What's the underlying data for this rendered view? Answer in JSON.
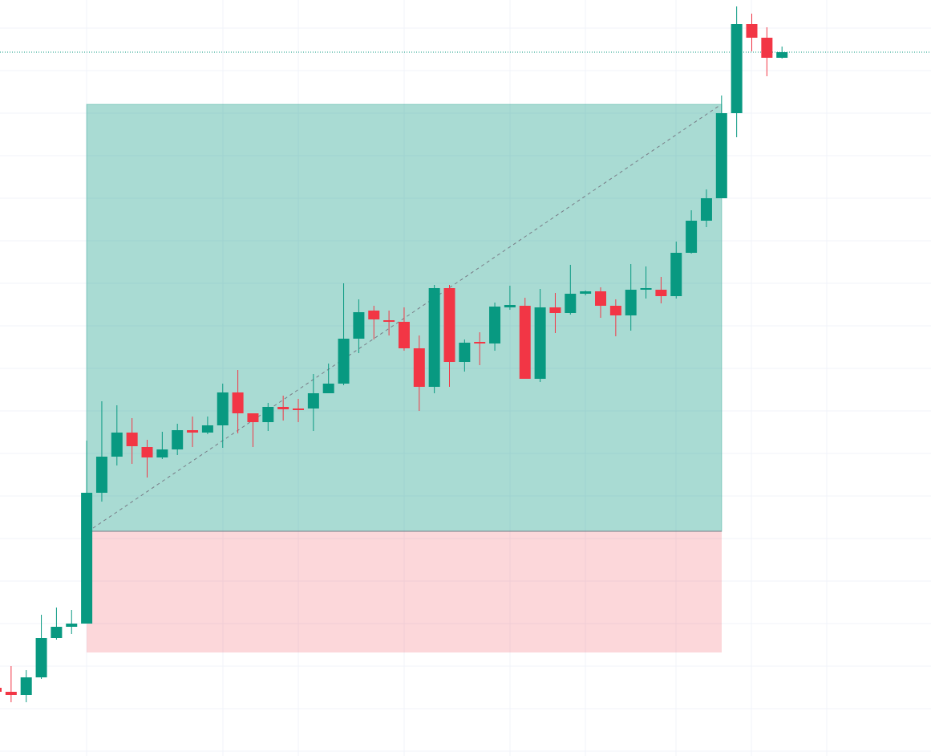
{
  "chart_data": {
    "type": "candlestick",
    "up_color": "#089981",
    "down_color": "#f23645",
    "ylim": [
      0,
      942
    ],
    "open": [
      85,
      80,
      76,
      98,
      147,
      161,
      165,
      328,
      373,
      403,
      385,
      372,
      382,
      406,
      403,
      412,
      453,
      427,
      416,
      435,
      433,
      433,
      452,
      464,
      520,
      555,
      543,
      541,
      508,
      460,
      583,
      491,
      516,
      514,
      559,
      561,
      470,
      559,
      552,
      576,
      579,
      561,
      549,
      581,
      581,
      573,
      627,
      667,
      695,
      801,
      912,
      895,
      870
    ],
    "high": [
      87,
      112,
      107,
      176,
      185,
      182,
      393,
      442,
      437,
      421,
      394,
      404,
      414,
      423,
      423,
      464,
      481,
      427,
      440,
      449,
      445,
      476,
      489,
      589,
      569,
      561,
      555,
      559,
      524,
      587,
      587,
      519,
      528,
      565,
      586,
      571,
      582,
      577,
      612,
      580,
      584,
      569,
      613,
      610,
      597,
      641,
      680,
      706,
      823,
      934,
      925,
      908,
      884
    ],
    "low": [
      78,
      67,
      67,
      96,
      145,
      152,
      165,
      317,
      362,
      364,
      347,
      370,
      375,
      385,
      401,
      384,
      402,
      385,
      405,
      418,
      416,
      405,
      452,
      462,
      502,
      519,
      524,
      505,
      430,
      452,
      460,
      479,
      487,
      505,
      556,
      470,
      466,
      527,
      550,
      574,
      546,
      523,
      530,
      570,
      564,
      570,
      626,
      659,
      695,
      771,
      878,
      847,
      869
    ],
    "close": [
      80,
      76,
      98,
      147,
      161,
      165,
      328,
      373,
      403,
      386,
      372,
      382,
      406,
      403,
      412,
      453,
      427,
      416,
      435,
      432,
      431,
      452,
      464,
      520,
      553,
      544,
      541,
      508,
      460,
      583,
      491,
      515,
      514,
      560,
      562,
      470,
      559,
      552,
      576,
      579,
      561,
      549,
      581,
      583,
      573,
      627,
      667,
      695,
      801,
      912,
      895,
      870,
      877
    ]
  }
}
